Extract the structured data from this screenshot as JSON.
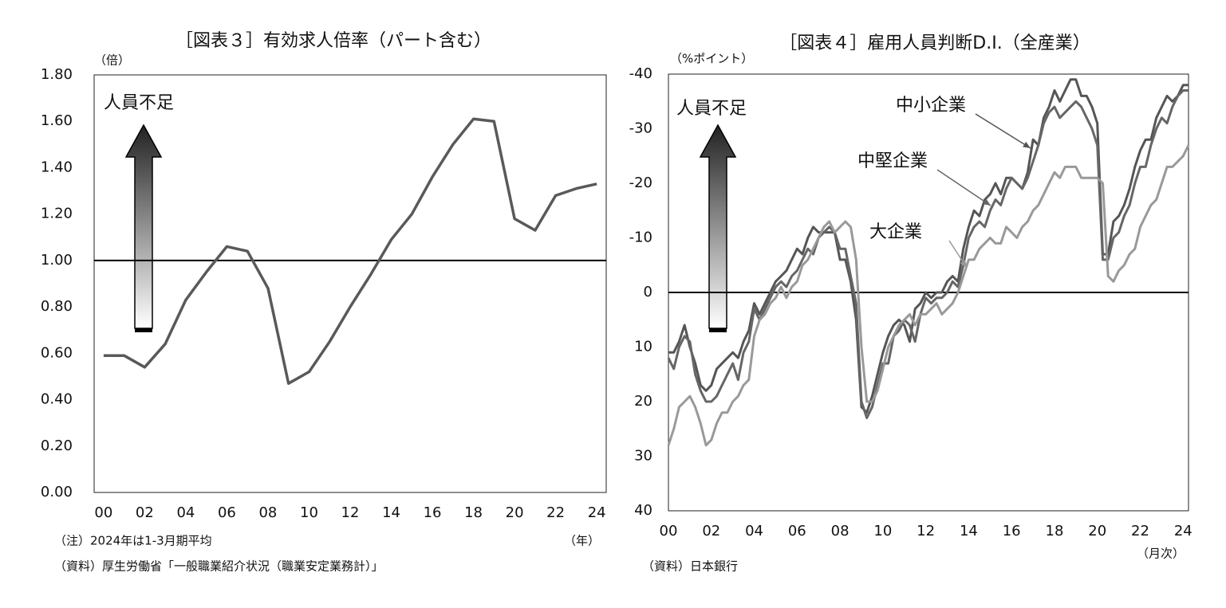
{
  "chart_data": [
    {
      "type": "line",
      "title": "［図表３］有効求人倍率（パート含む）",
      "y_unit": "（倍）",
      "x_unit": "（年）",
      "annotation": "人員不足",
      "notes": [
        "（注）2024年は1-3月期平均",
        "（資料）厚生労働省「一般職業紹介状況（職業安定業務計）」"
      ],
      "x": [
        2000,
        2001,
        2002,
        2003,
        2004,
        2005,
        2006,
        2007,
        2008,
        2009,
        2010,
        2011,
        2012,
        2013,
        2014,
        2015,
        2016,
        2017,
        2018,
        2019,
        2020,
        2021,
        2022,
        2023,
        2024
      ],
      "series": [
        {
          "color": "#595959",
          "values": [
            0.59,
            0.59,
            0.54,
            0.64,
            0.83,
            0.95,
            1.06,
            1.04,
            0.88,
            0.47,
            0.52,
            0.65,
            0.8,
            0.94,
            1.09,
            1.2,
            1.36,
            1.5,
            1.61,
            1.6,
            1.18,
            1.13,
            1.28,
            1.31,
            1.33
          ]
        }
      ],
      "reference_line": 1,
      "xlim": [
        1999.54,
        2024.46
      ],
      "xticks": [
        {
          "value": 2000,
          "label": "00"
        },
        {
          "value": 2002,
          "label": "02"
        },
        {
          "value": 2004,
          "label": "04"
        },
        {
          "value": 2006,
          "label": "06"
        },
        {
          "value": 2008,
          "label": "08"
        },
        {
          "value": 2010,
          "label": "10"
        },
        {
          "value": 2012,
          "label": "12"
        },
        {
          "value": 2014,
          "label": "14"
        },
        {
          "value": 2016,
          "label": "16"
        },
        {
          "value": 2018,
          "label": "18"
        },
        {
          "value": 2020,
          "label": "20"
        },
        {
          "value": 2022,
          "label": "22"
        },
        {
          "value": 2024,
          "label": "24"
        }
      ],
      "ylim": [
        0,
        1.8
      ],
      "yticks": [
        {
          "value": 0,
          "label": "0.00"
        },
        {
          "value": 0.2,
          "label": "0.20"
        },
        {
          "value": 0.4,
          "label": "0.40"
        },
        {
          "value": 0.6,
          "label": "0.60"
        },
        {
          "value": 0.8,
          "label": "0.80"
        },
        {
          "value": 1,
          "label": "1.00"
        },
        {
          "value": 1.2,
          "label": "1.20"
        },
        {
          "value": 1.4,
          "label": "1.40"
        },
        {
          "value": 1.6,
          "label": "1.60"
        },
        {
          "value": 1.8,
          "label": "1.80"
        }
      ]
    },
    {
      "type": "line",
      "title": "［図表４］雇用人員判断D.I.（全産業）",
      "y_unit": "（%ポイント）",
      "x_unit": "（月次）",
      "annotation": "人員不足",
      "notes": [
        "（資料）日本銀行"
      ],
      "x": [
        2000,
        2000.25,
        2000.5,
        2000.75,
        2001,
        2001.25,
        2001.5,
        2001.75,
        2002,
        2002.25,
        2002.5,
        2002.75,
        2003,
        2003.25,
        2003.5,
        2003.75,
        2004,
        2004.25,
        2004.5,
        2004.75,
        2005,
        2005.25,
        2005.5,
        2005.75,
        2006,
        2006.25,
        2006.5,
        2006.75,
        2007,
        2007.25,
        2007.5,
        2007.75,
        2008,
        2008.25,
        2008.5,
        2008.75,
        2009,
        2009.25,
        2009.5,
        2009.75,
        2010,
        2010.25,
        2010.5,
        2010.75,
        2011,
        2011.25,
        2011.5,
        2011.75,
        2012,
        2012.25,
        2012.5,
        2012.75,
        2013,
        2013.25,
        2013.5,
        2013.75,
        2014,
        2014.25,
        2014.5,
        2014.75,
        2015,
        2015.25,
        2015.5,
        2015.75,
        2016,
        2016.25,
        2016.5,
        2016.75,
        2017,
        2017.25,
        2017.5,
        2017.75,
        2018,
        2018.25,
        2018.5,
        2018.75,
        2019,
        2019.25,
        2019.5,
        2019.75,
        2020,
        2020.25,
        2020.5,
        2020.75,
        2021,
        2021.25,
        2021.5,
        2021.75,
        2022,
        2022.25,
        2022.5,
        2022.75,
        2023,
        2023.25,
        2023.5,
        2023.75,
        2024,
        2024.25
      ],
      "series": [
        {
          "name": "中小企業",
          "color": "#555555",
          "values": [
            11,
            11,
            9,
            6,
            10,
            13,
            17,
            18,
            17,
            14,
            13,
            12,
            11,
            12,
            9,
            7,
            2,
            4,
            2,
            0,
            -2,
            -3,
            -4,
            -6,
            -8,
            -7,
            -10,
            -12,
            -11,
            -11,
            -11,
            -11,
            -6,
            -6,
            -2,
            5,
            21,
            22,
            19,
            15,
            11,
            8,
            6,
            5,
            6,
            9,
            3,
            2,
            0,
            1,
            0,
            0,
            -2,
            -3,
            -2,
            -8,
            -12,
            -15,
            -14,
            -17,
            -18,
            -20,
            -18,
            -21,
            -21,
            -20,
            -19,
            -22,
            -28,
            -27,
            -32,
            -34,
            -37,
            -35,
            -37,
            -39,
            -39,
            -36,
            -36,
            -34,
            -31,
            -7,
            -7,
            -13,
            -14,
            -16,
            -19,
            -23,
            -26,
            -28,
            -28,
            -32,
            -34,
            -36,
            -35,
            -36,
            -38,
            -38
          ]
        },
        {
          "name": "中堅企業",
          "color": "#666666",
          "values": [
            12,
            14,
            10,
            8,
            9,
            15,
            18,
            20,
            20,
            19,
            17,
            15,
            13,
            16,
            11,
            9,
            3,
            5,
            3,
            1,
            -1,
            -2,
            -1,
            -3,
            -4,
            -6,
            -8,
            -7,
            -10,
            -11,
            -12,
            -11,
            -8,
            -8,
            -3,
            2,
            20,
            23,
            21,
            17,
            13,
            13,
            8,
            7,
            5,
            6,
            9,
            4,
            1,
            2,
            1,
            1,
            0,
            -2,
            -1,
            -5,
            -10,
            -12,
            -13,
            -12,
            -15,
            -17,
            -16,
            -19,
            -21,
            -20,
            -19,
            -21,
            -24,
            -27,
            -31,
            -33,
            -34,
            -32,
            -33,
            -34,
            -35,
            -34,
            -32,
            -30,
            -27,
            -6,
            -6,
            -10,
            -11,
            -14,
            -16,
            -20,
            -23,
            -23,
            -27,
            -30,
            -32,
            -31,
            -34,
            -36,
            -37,
            -37
          ]
        },
        {
          "name": "大企業",
          "color": "#999999",
          "values": [
            28,
            25,
            21,
            20,
            19,
            21,
            24,
            28,
            27,
            24,
            22,
            22,
            20,
            19,
            17,
            16,
            8,
            5,
            4,
            2,
            1,
            -1,
            1,
            -1,
            -2,
            -5,
            -6,
            -8,
            -10,
            -12,
            -13,
            -11,
            -12,
            -13,
            -12,
            -6,
            10,
            20,
            20,
            18,
            14,
            10,
            8,
            6,
            5,
            4,
            6,
            4,
            4,
            3,
            2,
            4,
            3,
            2,
            0,
            -3,
            -6,
            -6,
            -8,
            -9,
            -10,
            -9,
            -9,
            -12,
            -11,
            -10,
            -12,
            -13,
            -15,
            -16,
            -18,
            -20,
            -22,
            -21,
            -23,
            -23,
            -23,
            -21,
            -21,
            -21,
            -21,
            -20,
            -3,
            -2,
            -4,
            -5,
            -7,
            -8,
            -12,
            -14,
            -16,
            -17,
            -20,
            -23,
            -23,
            -24,
            -25,
            -27
          ]
        }
      ],
      "reference_line": 0,
      "invert_y": true,
      "xlim": [
        2000,
        2024.25
      ],
      "xticks": [
        {
          "value": 2000,
          "label": "00"
        },
        {
          "value": 2002,
          "label": "02"
        },
        {
          "value": 2004,
          "label": "04"
        },
        {
          "value": 2006,
          "label": "06"
        },
        {
          "value": 2008,
          "label": "08"
        },
        {
          "value": 2010,
          "label": "10"
        },
        {
          "value": 2012,
          "label": "12"
        },
        {
          "value": 2014,
          "label": "14"
        },
        {
          "value": 2016,
          "label": "16"
        },
        {
          "value": 2018,
          "label": "18"
        },
        {
          "value": 2020,
          "label": "20"
        },
        {
          "value": 2022,
          "label": "22"
        },
        {
          "value": 2024,
          "label": "24"
        }
      ],
      "ylim": [
        -40,
        40
      ],
      "yticks": [
        -40,
        -30,
        -20,
        -10,
        0,
        10,
        20,
        30,
        40
      ]
    }
  ]
}
